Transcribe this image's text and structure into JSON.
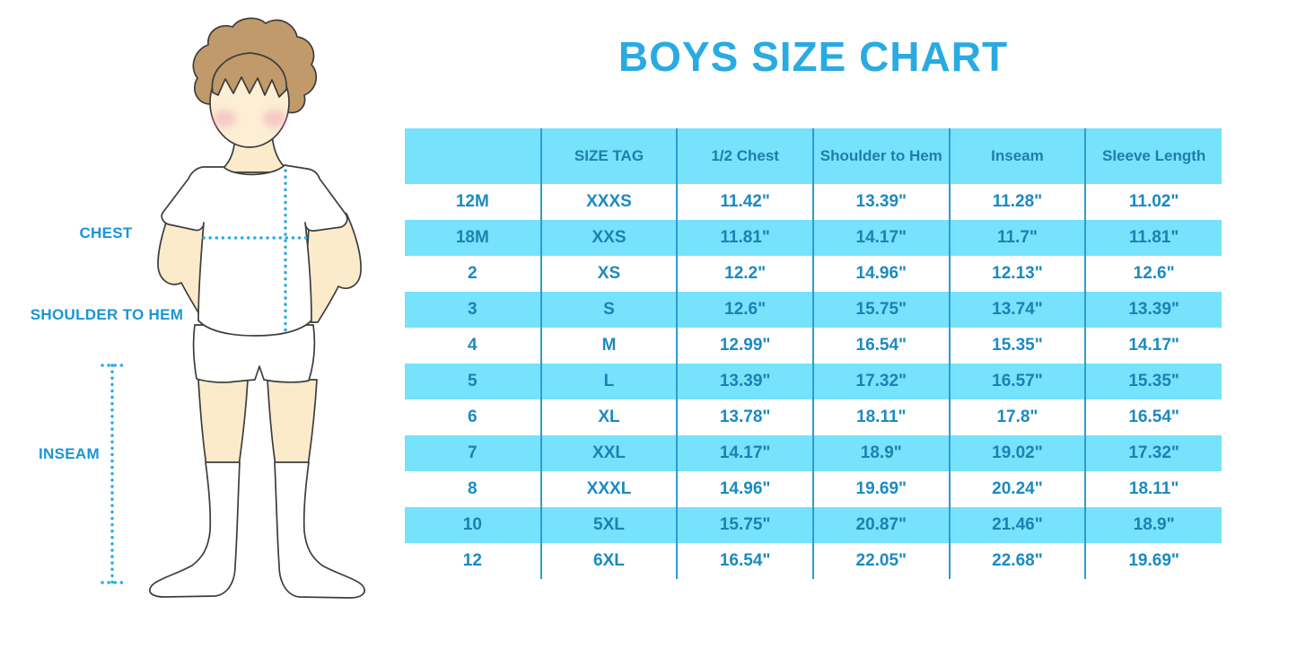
{
  "title": "BOYS SIZE CHART",
  "figure": {
    "labels": {
      "chest": "CHEST",
      "shoulder_to_hem": "SHOULDER TO HEM",
      "inseam": "INSEAM"
    }
  },
  "colors": {
    "title_blue": "#29ABE2",
    "label_blue": "#1995D6",
    "row_cyan": "#76E2FB",
    "divider_blue": "#2E9CCE",
    "header_text": "#1F7EA9",
    "body_text": "#1B8AC2",
    "dotted_line": "#29ABE2",
    "hair": "#C09A6B",
    "skin": "#FCEBCB",
    "blush": "#F2A9BE"
  },
  "chart_data": {
    "type": "table",
    "title": "BOYS SIZE CHART",
    "columns": [
      "",
      "SIZE TAG",
      "1/2 Chest",
      "Shoulder to Hem",
      "Inseam",
      "Sleeve Length"
    ],
    "rows": [
      [
        "12M",
        "XXXS",
        "11.42\"",
        "13.39\"",
        "11.28\"",
        "11.02\""
      ],
      [
        "18M",
        "XXS",
        "11.81\"",
        "14.17\"",
        "11.7\"",
        "11.81\""
      ],
      [
        "2",
        "XS",
        "12.2\"",
        "14.96\"",
        "12.13\"",
        "12.6\""
      ],
      [
        "3",
        "S",
        "12.6\"",
        "15.75\"",
        "13.74\"",
        "13.39\""
      ],
      [
        "4",
        "M",
        "12.99\"",
        "16.54\"",
        "15.35\"",
        "14.17\""
      ],
      [
        "5",
        "L",
        "13.39\"",
        "17.32\"",
        "16.57\"",
        "15.35\""
      ],
      [
        "6",
        "XL",
        "13.78\"",
        "18.11\"",
        "17.8\"",
        "16.54\""
      ],
      [
        "7",
        "XXL",
        "14.17\"",
        "18.9\"",
        "19.02\"",
        "17.32\""
      ],
      [
        "8",
        "XXXL",
        "14.96\"",
        "19.69\"",
        "20.24\"",
        "18.11\""
      ],
      [
        "10",
        "5XL",
        "15.75\"",
        "20.87\"",
        "21.46\"",
        "18.9\""
      ],
      [
        "12",
        "6XL",
        "16.54\"",
        "22.05\"",
        "22.68\"",
        "19.69\""
      ]
    ],
    "row_striping": "white/cyan alternating, header cyan",
    "units": "inches"
  }
}
